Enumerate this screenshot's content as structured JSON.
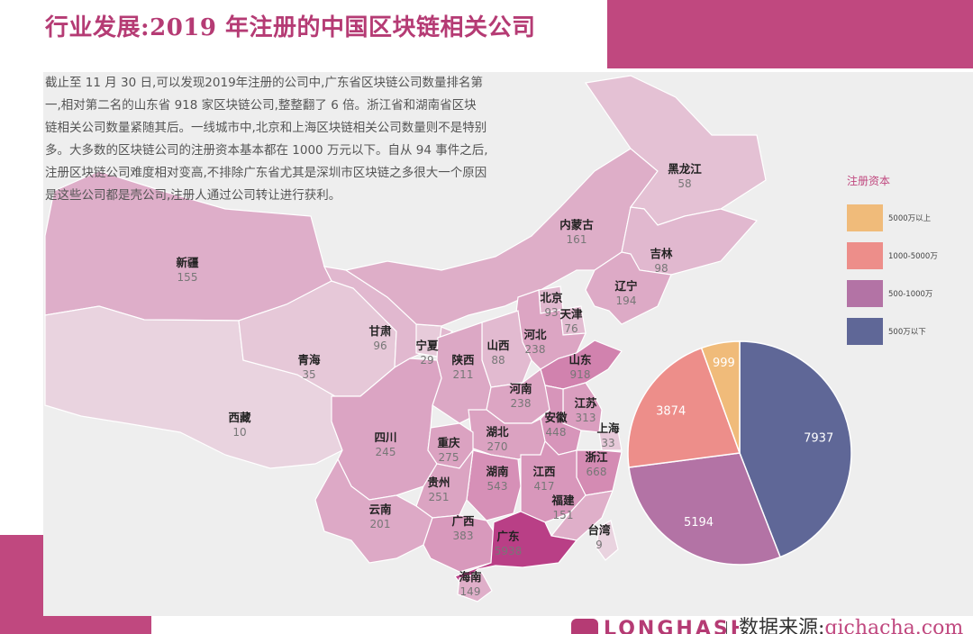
{
  "header": {
    "title": "行业发展:2019 年注册的中国区块链相关公司"
  },
  "description": "截止至 11 月 30 日,可以发现2019年注册的公司中,广东省区块链公司数量排名第一,相对第二名的山东省 918 家区块链公司,整整翻了 6 倍。浙江省和湖南省区块链相关公司数量紧随其后。一线城市中,北京和上海区块链相关公司数量则不是特别多。大多数的区块链公司的注册资本基本都在 1000 万元以下。自从 94 事件之后,注册区块链公司难度相对变高,不排除广东省尤其是深圳市区块链之多很大一个原因是这些公司都是壳公司,注册人通过公司转让进行获利。",
  "colors": {
    "accent": "#c0487f",
    "title": "#b53b74",
    "map_low": "#e9d3df",
    "map_high": "#c0468a",
    "pie_5000_plus": "#f0bb7a",
    "pie_1000_5000": "#ed8e8a",
    "pie_500_1000": "#b373a5",
    "pie_under_500": "#5f6797"
  },
  "chart_data": [
    {
      "type": "map",
      "regions": [
        {
          "name": "新疆",
          "value": 155
        },
        {
          "name": "西藏",
          "value": 10
        },
        {
          "name": "青海",
          "value": 35
        },
        {
          "name": "甘肃",
          "value": 96
        },
        {
          "name": "宁夏",
          "value": 29
        },
        {
          "name": "内蒙古",
          "value": 161
        },
        {
          "name": "黑龙江",
          "value": 58
        },
        {
          "name": "吉林",
          "value": 98
        },
        {
          "name": "辽宁",
          "value": 194
        },
        {
          "name": "北京",
          "value": 93
        },
        {
          "name": "天津",
          "value": 76
        },
        {
          "name": "河北",
          "value": 238
        },
        {
          "name": "山西",
          "value": 88
        },
        {
          "name": "陕西",
          "value": 211
        },
        {
          "name": "山东",
          "value": 918
        },
        {
          "name": "河南",
          "value": 238
        },
        {
          "name": "江苏",
          "value": 313
        },
        {
          "name": "安徽",
          "value": 448
        },
        {
          "name": "上海",
          "value": 33
        },
        {
          "name": "湖北",
          "value": 270
        },
        {
          "name": "四川",
          "value": 245
        },
        {
          "name": "重庆",
          "value": 275
        },
        {
          "name": "浙江",
          "value": 668
        },
        {
          "name": "湖南",
          "value": 543
        },
        {
          "name": "江西",
          "value": 417
        },
        {
          "name": "贵州",
          "value": 251
        },
        {
          "name": "云南",
          "value": 201
        },
        {
          "name": "福建",
          "value": 151
        },
        {
          "name": "广西",
          "value": 383
        },
        {
          "name": "广东",
          "value": 5938
        },
        {
          "name": "台湾",
          "value": 9
        },
        {
          "name": "海南",
          "value": 149
        }
      ]
    },
    {
      "type": "pie",
      "legend_title": "注册资本",
      "legend_position": "right",
      "slices": [
        {
          "label": "5000万以上",
          "value": 999,
          "color": "#f0bb7a"
        },
        {
          "label": "1000-5000万",
          "value": 3874,
          "color": "#ed8e8a"
        },
        {
          "label": "500-1000万",
          "value": 5194,
          "color": "#b373a5"
        },
        {
          "label": "500万以下",
          "value": 7937,
          "color": "#5f6797"
        }
      ]
    }
  ],
  "footer": {
    "logo": "LONGHASH",
    "source_label": "数据来源:",
    "source_value": "qichacha.com"
  }
}
